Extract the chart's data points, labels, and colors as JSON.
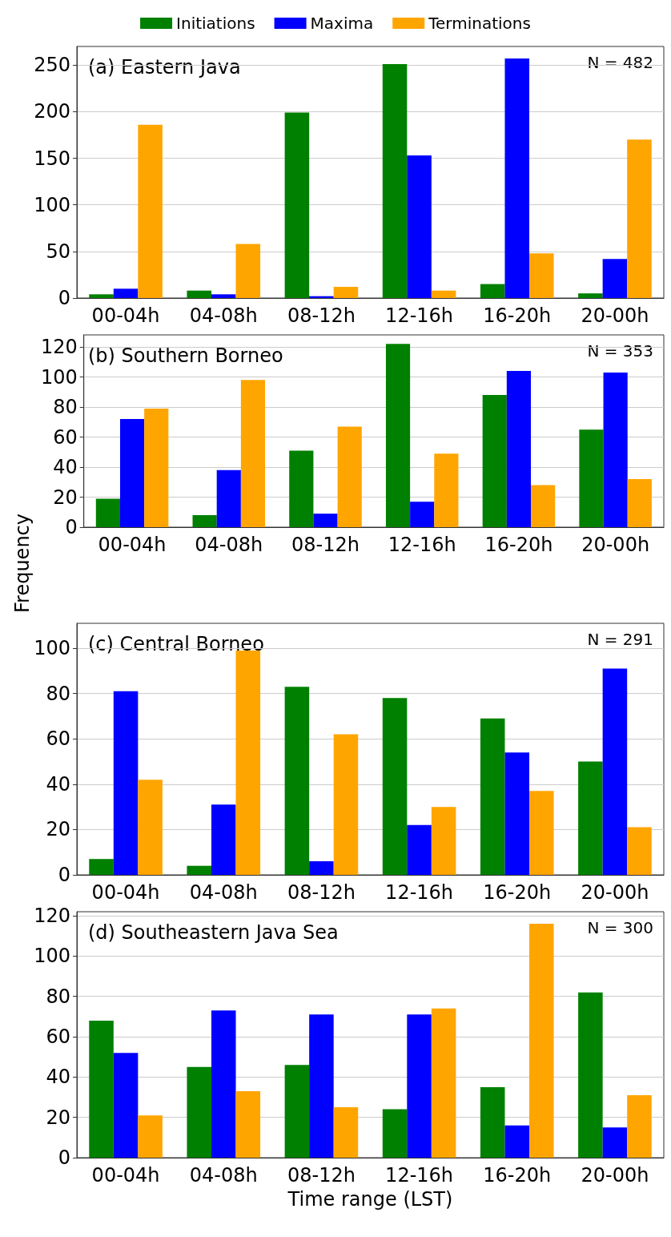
{
  "chart_data": [
    {
      "type": "bar",
      "title": "(a) Eastern Java",
      "annotations": [
        "N = 482"
      ],
      "categories": [
        "00-04h",
        "04-08h",
        "08-12h",
        "12-16h",
        "16-20h",
        "20-00h"
      ],
      "series": [
        {
          "name": "Initiations",
          "color": "#008000",
          "values": [
            4,
            8,
            199,
            251,
            15,
            5
          ]
        },
        {
          "name": "Maxima",
          "color": "#0000ff",
          "values": [
            10,
            4,
            2,
            153,
            257,
            42
          ]
        },
        {
          "name": "Terminations",
          "color": "#ffa500",
          "values": [
            186,
            58,
            12,
            8,
            48,
            170
          ]
        }
      ],
      "ylim": [
        0,
        270
      ],
      "yticks": [
        0,
        50,
        100,
        150,
        200,
        250
      ],
      "grid": "y",
      "legend": "top"
    },
    {
      "type": "bar",
      "title": "(b) Southern Borneo",
      "ylabel": "Frequency",
      "annotations": [
        "N = 353"
      ],
      "categories": [
        "00-04h",
        "04-08h",
        "08-12h",
        "12-16h",
        "16-20h",
        "20-00h"
      ],
      "series": [
        {
          "color": "#008000",
          "values": [
            19,
            8,
            51,
            122,
            88,
            65
          ]
        },
        {
          "color": "#0000ff",
          "values": [
            72,
            38,
            9,
            17,
            104,
            103
          ]
        },
        {
          "color": "#ffa500",
          "values": [
            79,
            98,
            67,
            49,
            28,
            32
          ]
        }
      ],
      "ylim": [
        0,
        128
      ],
      "yticks": [
        0,
        20,
        40,
        60,
        80,
        100,
        120
      ],
      "grid": "y"
    },
    {
      "type": "bar",
      "title": "(c) Central Borneo",
      "annotations": [
        "N = 291"
      ],
      "categories": [
        "00-04h",
        "04-08h",
        "08-12h",
        "12-16h",
        "16-20h",
        "20-00h"
      ],
      "series": [
        {
          "color": "#008000",
          "values": [
            7,
            4,
            83,
            78,
            69,
            50
          ]
        },
        {
          "color": "#0000ff",
          "values": [
            81,
            31,
            6,
            22,
            54,
            91
          ]
        },
        {
          "color": "#ffa500",
          "values": [
            42,
            99,
            62,
            30,
            37,
            21
          ]
        }
      ],
      "ylim": [
        0,
        111
      ],
      "yticks": [
        0,
        20,
        40,
        60,
        80,
        100
      ],
      "grid": "y"
    },
    {
      "type": "bar",
      "title": "(d) Southeastern Java Sea",
      "xlabel": "Time range (LST)",
      "annotations": [
        "N = 300"
      ],
      "categories": [
        "00-04h",
        "04-08h",
        "08-12h",
        "12-16h",
        "16-20h",
        "20-00h"
      ],
      "series": [
        {
          "color": "#008000",
          "values": [
            68,
            45,
            46,
            24,
            35,
            82
          ]
        },
        {
          "color": "#0000ff",
          "values": [
            52,
            73,
            71,
            71,
            16,
            15
          ]
        },
        {
          "color": "#ffa500",
          "values": [
            21,
            33,
            25,
            74,
            116,
            31
          ]
        }
      ],
      "ylim": [
        0,
        122
      ],
      "yticks": [
        0,
        20,
        40,
        60,
        80,
        100,
        120
      ],
      "grid": "y"
    }
  ]
}
